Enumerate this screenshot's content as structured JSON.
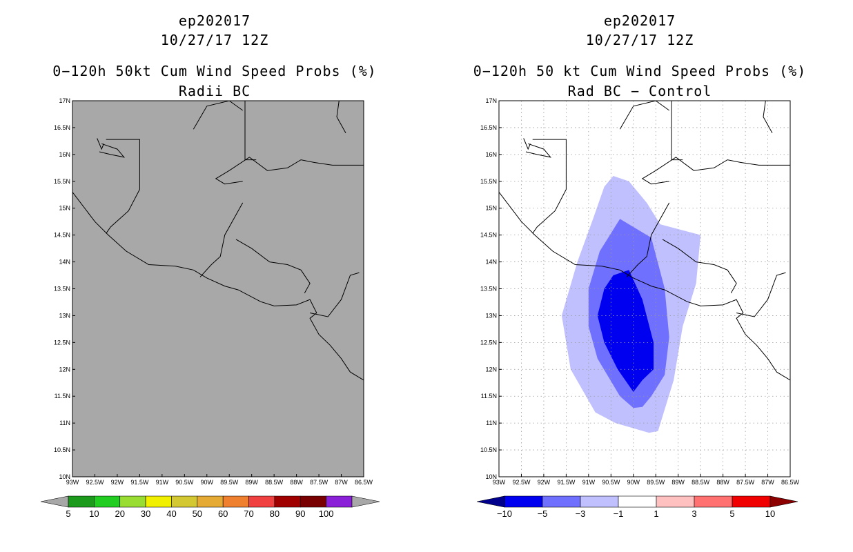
{
  "chart_data": [
    {
      "type": "heatmap",
      "panel": "left",
      "title_lines": [
        "ep202017",
        "10/27/17 12Z",
        "0−120h 50kt Cum Wind Speed Probs (%)",
        "Radii BC"
      ],
      "x_ticks": [
        "93W",
        "92.5W",
        "92W",
        "91.5W",
        "91W",
        "90.5W",
        "90W",
        "89.5W",
        "89W",
        "88.5W",
        "88W",
        "87.5W",
        "87W",
        "86.5W"
      ],
      "y_ticks": [
        "10N",
        "10.5N",
        "11N",
        "11.5N",
        "12N",
        "12.5N",
        "13N",
        "13.5N",
        "14N",
        "14.5N",
        "15N",
        "15.5N",
        "16N",
        "16.5N",
        "17N"
      ],
      "xlim": [
        -93,
        -86.5
      ],
      "ylim": [
        10,
        17
      ],
      "grid": false,
      "background": "#a8a8a8",
      "field_values": "all below 5% (no shaded probability)",
      "colorbar": {
        "labels": [
          "5",
          "10",
          "20",
          "30",
          "40",
          "50",
          "60",
          "70",
          "80",
          "90",
          "100"
        ],
        "colors": [
          "#1c9a1c",
          "#21cd21",
          "#99dd33",
          "#f0f000",
          "#d4c832",
          "#e5aa33",
          "#ee8030",
          "#f04040",
          "#a00000",
          "#780000",
          "#8a20d8"
        ],
        "end_colors": [
          "#a8a8a8",
          "#a8a8a8"
        ]
      }
    },
    {
      "type": "heatmap",
      "panel": "right",
      "title_lines": [
        "ep202017",
        "10/27/17 12Z",
        "0−120h 50 kt Cum Wind Speed Probs (%)",
        "Rad BC − Control"
      ],
      "x_ticks": [
        "93W",
        "92.5W",
        "92W",
        "91.5W",
        "91W",
        "90.5W",
        "90W",
        "89.5W",
        "89W",
        "88.5W",
        "88W",
        "87.5W",
        "87W",
        "86.5W"
      ],
      "y_ticks": [
        "10N",
        "10.5N",
        "11N",
        "11.5N",
        "12N",
        "12.5N",
        "13N",
        "13.5N",
        "14N",
        "14.5N",
        "15N",
        "15.5N",
        "16N",
        "16.5N",
        "17N"
      ],
      "xlim": [
        -93,
        -86.5
      ],
      "ylim": [
        10,
        17
      ],
      "grid": true,
      "background": "#ffffff",
      "contours": [
        {
          "level": "-3 to -1",
          "color": "#c0c0ff",
          "points": [
            [
              -90.45,
              15.6
            ],
            [
              -90.1,
              15.5
            ],
            [
              -89.7,
              15.1
            ],
            [
              -89.4,
              14.7
            ],
            [
              -88.5,
              14.5
            ],
            [
              -88.6,
              13.6
            ],
            [
              -88.9,
              12.8
            ],
            [
              -89.1,
              11.8
            ],
            [
              -89.45,
              10.85
            ],
            [
              -89.65,
              10.82
            ],
            [
              -90.4,
              11.0
            ],
            [
              -90.85,
              11.2
            ],
            [
              -91.4,
              12.0
            ],
            [
              -91.6,
              13.0
            ],
            [
              -91.25,
              14.0
            ],
            [
              -90.9,
              14.8
            ],
            [
              -90.65,
              15.4
            ]
          ]
        },
        {
          "level": "-5 to -3",
          "color": "#7070ff",
          "points": [
            [
              -90.3,
              14.8
            ],
            [
              -89.6,
              14.45
            ],
            [
              -89.3,
              13.5
            ],
            [
              -89.2,
              12.6
            ],
            [
              -89.3,
              11.9
            ],
            [
              -89.6,
              11.5
            ],
            [
              -89.8,
              11.3
            ],
            [
              -90.0,
              11.28
            ],
            [
              -90.3,
              11.5
            ],
            [
              -90.8,
              12.2
            ],
            [
              -91.0,
              12.8
            ],
            [
              -91.0,
              13.5
            ],
            [
              -90.75,
              14.2
            ]
          ]
        },
        {
          "level": "-10 to -5",
          "color": "#0000f0",
          "points": [
            [
              -90.45,
              13.75
            ],
            [
              -90.1,
              13.85
            ],
            [
              -89.8,
              13.3
            ],
            [
              -89.55,
              12.5
            ],
            [
              -89.55,
              12.0
            ],
            [
              -89.8,
              11.8
            ],
            [
              -90.0,
              11.58
            ],
            [
              -90.35,
              12.0
            ],
            [
              -90.65,
              12.5
            ],
            [
              -90.8,
              13.0
            ],
            [
              -90.65,
              13.5
            ]
          ]
        }
      ],
      "colorbar": {
        "labels": [
          "−10",
          "−5",
          "−3",
          "−1",
          "1",
          "3",
          "5",
          "10"
        ],
        "colors": [
          "#0000f0",
          "#7070ff",
          "#c0c0ff",
          "#ffffff",
          "#ffc0c0",
          "#ff7070",
          "#f00000"
        ],
        "end_colors": [
          "#00008c",
          "#8c0000"
        ]
      }
    }
  ]
}
